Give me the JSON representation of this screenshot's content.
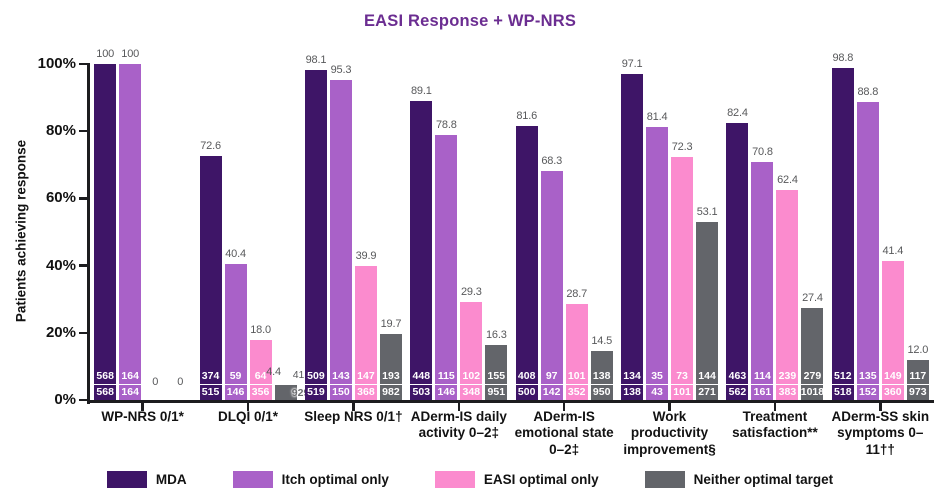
{
  "chart_data": {
    "type": "bar",
    "title": "EASI Response + WP-NRS",
    "ylabel": "Patients achieving response",
    "ylim": [
      0,
      100
    ],
    "yticks": [
      0,
      20,
      40,
      60,
      80,
      100
    ],
    "ytick_suffix": "%",
    "grid": false,
    "legend_position": "bottom",
    "title_color": "#6b2d91",
    "categories": [
      "WP-NRS 0/1*",
      "DLQI 0/1*",
      "Sleep NRS 0/1†",
      "ADerm-IS daily activity 0–2‡",
      "ADerm-IS emotional state 0–2‡",
      "Work productivity improvement§",
      "Treatment satisfaction**",
      "ADerm-SS skin symptoms 0–11††"
    ],
    "series": [
      {
        "key": "mda",
        "name": "MDA",
        "color": "#3e1567",
        "values": [
          100,
          72.6,
          98.1,
          89.1,
          81.6,
          97.1,
          82.4,
          98.8
        ],
        "labels": [
          "100",
          "72.6",
          "98.1",
          "89.1",
          "81.6",
          "97.1",
          "82.4",
          "98.8"
        ],
        "n": [
          [
            "568",
            "568"
          ],
          [
            "374",
            "515"
          ],
          [
            "509",
            "519"
          ],
          [
            "448",
            "503"
          ],
          [
            "408",
            "500"
          ],
          [
            "134",
            "138"
          ],
          [
            "463",
            "562"
          ],
          [
            "512",
            "518"
          ]
        ]
      },
      {
        "key": "itch",
        "name": "Itch optimal only",
        "color": "#a961c8",
        "values": [
          100,
          40.4,
          95.3,
          78.8,
          68.3,
          81.4,
          70.8,
          88.8
        ],
        "labels": [
          "100",
          "40.4",
          "95.3",
          "78.8",
          "68.3",
          "81.4",
          "70.8",
          "88.8"
        ],
        "n": [
          [
            "164",
            "164"
          ],
          [
            "59",
            "146"
          ],
          [
            "143",
            "150"
          ],
          [
            "115",
            "146"
          ],
          [
            "97",
            "142"
          ],
          [
            "35",
            "43"
          ],
          [
            "114",
            "161"
          ],
          [
            "135",
            "152"
          ]
        ]
      },
      {
        "key": "easi",
        "name": "EASI optimal only",
        "color": "#fb8bce",
        "values": [
          0,
          18.0,
          39.9,
          29.3,
          28.7,
          72.3,
          62.4,
          41.4
        ],
        "labels": [
          "0",
          "18.0",
          "39.9",
          "29.3",
          "28.7",
          "72.3",
          "62.4",
          "41.4"
        ],
        "n": [
          null,
          [
            "64",
            "356"
          ],
          [
            "147",
            "368"
          ],
          [
            "102",
            "348"
          ],
          [
            "101",
            "352"
          ],
          [
            "73",
            "101"
          ],
          [
            "239",
            "383"
          ],
          [
            "149",
            "360"
          ]
        ]
      },
      {
        "key": "neither",
        "name": "Neither optimal target",
        "color": "#63656a",
        "values": [
          0,
          4.4,
          19.7,
          16.3,
          14.5,
          53.1,
          27.4,
          12.0
        ],
        "labels": [
          "0",
          "4.4",
          "19.7",
          "16.3",
          "14.5",
          "53.1",
          "27.4",
          "12.0"
        ],
        "n": [
          null,
          [
            "41",
            "929"
          ],
          [
            "193",
            "982"
          ],
          [
            "155",
            "951"
          ],
          [
            "138",
            "950"
          ],
          [
            "144",
            "271"
          ],
          [
            "279",
            "1018"
          ],
          [
            "117",
            "973"
          ]
        ]
      }
    ]
  }
}
